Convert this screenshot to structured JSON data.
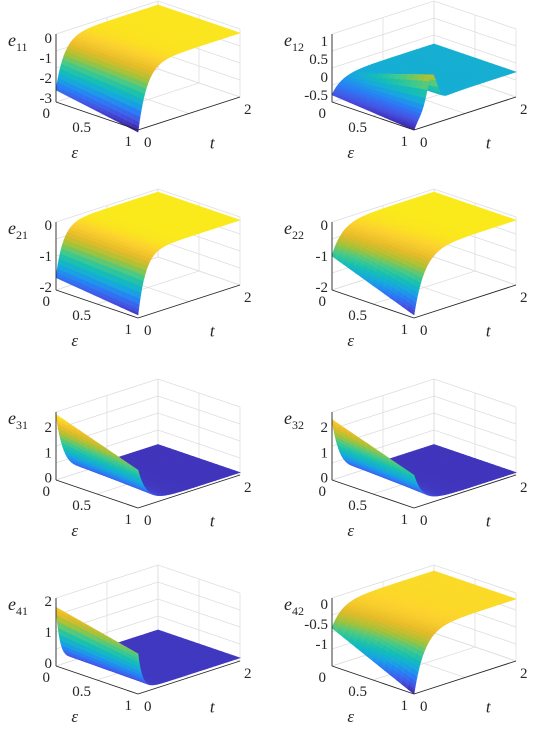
{
  "colormap": [
    "#3e26a8",
    "#4653e3",
    "#2b7cf6",
    "#17a7e0",
    "#14bfb5",
    "#48ca87",
    "#a7c237",
    "#e6bb29",
    "#fcd12f",
    "#f9fb0e"
  ],
  "chart_data": [
    {
      "type": "surface",
      "z_label": "e",
      "z_sub": "11",
      "xlabel": "ε",
      "ylabel": "t",
      "x_ticks": [
        "0",
        "0.5",
        "1"
      ],
      "y_ticks": [
        "0",
        "2"
      ],
      "z_ticks": [
        "0",
        "-1",
        "-2",
        "-3"
      ],
      "xlim": [
        0,
        1
      ],
      "ylim": [
        0,
        2
      ],
      "zlim": [
        -3.2,
        0.2
      ],
      "shape": "decay",
      "start_min": -2.6,
      "start_max": -3.3,
      "rate": 6
    },
    {
      "type": "surface",
      "z_label": "e",
      "z_sub": "12",
      "xlabel": "ε",
      "ylabel": "t",
      "x_ticks": [
        "0",
        "0.5",
        "1"
      ],
      "y_ticks": [
        "0",
        "2"
      ],
      "z_ticks": [
        "1",
        "0.5",
        "0",
        "-0.5"
      ],
      "xlim": [
        0,
        1
      ],
      "ylim": [
        0,
        2
      ],
      "zlim": [
        -0.7,
        1.2
      ],
      "shape": "bump",
      "start_min": -0.5,
      "start_max": -0.7,
      "rate": 5
    },
    {
      "type": "surface",
      "z_label": "e",
      "z_sub": "21",
      "xlabel": "ε",
      "ylabel": "t",
      "x_ticks": [
        "0",
        "0.5",
        "1"
      ],
      "y_ticks": [
        "0",
        "2"
      ],
      "z_ticks": [
        "0",
        "-1",
        "-2"
      ],
      "xlim": [
        0,
        1
      ],
      "ylim": [
        0,
        2
      ],
      "zlim": [
        -2.1,
        0.1
      ],
      "shape": "decay",
      "start_min": -1.7,
      "start_max": -2.0,
      "rate": 7
    },
    {
      "type": "surface",
      "z_label": "e",
      "z_sub": "22",
      "xlabel": "ε",
      "ylabel": "t",
      "x_ticks": [
        "0",
        "0.5",
        "1"
      ],
      "y_ticks": [
        "0",
        "2"
      ],
      "z_ticks": [
        "0",
        "-1",
        "-2"
      ],
      "xlim": [
        0,
        1
      ],
      "ylim": [
        0,
        2
      ],
      "zlim": [
        -2.1,
        0.1
      ],
      "shape": "decay",
      "start_min": -1.0,
      "start_max": -2.0,
      "rate": 5
    },
    {
      "type": "surface",
      "z_label": "e",
      "z_sub": "31",
      "xlabel": "ε",
      "ylabel": "t",
      "x_ticks": [
        "0",
        "0.5",
        "1"
      ],
      "y_ticks": [
        "0",
        "2"
      ],
      "z_ticks": [
        "2",
        "1",
        "0"
      ],
      "xlim": [
        0,
        1
      ],
      "ylim": [
        0,
        2
      ],
      "zlim": [
        -0.1,
        2.6
      ],
      "shape": "decay",
      "start_min": 2.5,
      "start_max": 1.4,
      "rate": 6
    },
    {
      "type": "surface",
      "z_label": "e",
      "z_sub": "32",
      "xlabel": "ε",
      "ylabel": "t",
      "x_ticks": [
        "0",
        "0.5",
        "1"
      ],
      "y_ticks": [
        "0",
        "2"
      ],
      "z_ticks": [
        "2",
        "1",
        "0"
      ],
      "xlim": [
        0,
        1
      ],
      "ylim": [
        0,
        2
      ],
      "zlim": [
        -0.1,
        2.6
      ],
      "shape": "decay",
      "start_min": 2.3,
      "start_max": 1.2,
      "rate": 6
    },
    {
      "type": "surface",
      "z_label": "e",
      "z_sub": "41",
      "xlabel": "ε",
      "ylabel": "t",
      "x_ticks": [
        "0",
        "0.5",
        "1"
      ],
      "y_ticks": [
        "0",
        "2"
      ],
      "z_ticks": [
        "2",
        "1",
        "0"
      ],
      "xlim": [
        0,
        1
      ],
      "ylim": [
        0,
        2
      ],
      "zlim": [
        -0.1,
        2.1
      ],
      "shape": "decay",
      "start_min": 1.8,
      "start_max": 1.2,
      "rate": 12
    },
    {
      "type": "surface",
      "z_label": "e",
      "z_sub": "42",
      "xlabel": "ε",
      "ylabel": "t",
      "x_ticks": [
        "0",
        "0.5",
        "1"
      ],
      "y_ticks": [
        "0",
        "2"
      ],
      "z_ticks": [
        "0",
        "-0.5",
        "-1"
      ],
      "xlim": [
        0,
        1
      ],
      "ylim": [
        0,
        2
      ],
      "zlim": [
        -1.55,
        0.15
      ],
      "shape": "decay",
      "start_min": -0.6,
      "start_max": -1.55,
      "rate": 5
    }
  ]
}
